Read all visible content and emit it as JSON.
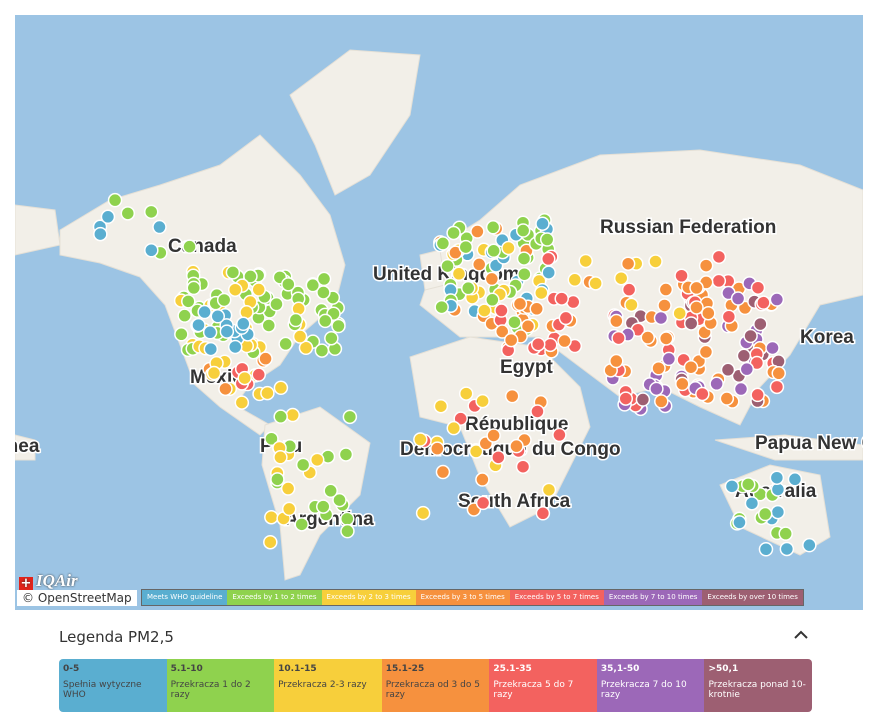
{
  "map": {
    "labels": [
      "Canada",
      "United Kingdom",
      "Russian Federation",
      "Egypt",
      "Korea",
      "République",
      "Démocratique du Congo",
      "South Africa",
      "Australia",
      "Argentina",
      "Mexico",
      "Peru",
      "Papua New Guinea",
      "Guinea"
    ],
    "brand": "IQAir",
    "attribution": "© OpenStreetMap",
    "mini_legend": [
      "Meets WHO guideline",
      "Exceeds by 1 to 2 times",
      "Exceeds by 2 to 3 times",
      "Exceeds by 3 to 5 times",
      "Exceeds by 5 to 7 times",
      "Exceeds by 7 to 10 times",
      "Exceeds by over 10 times"
    ]
  },
  "legend": {
    "title": "Legenda PM2,5",
    "items": [
      {
        "range": "0-5",
        "description": "Spełnia wytyczne WHO",
        "color": "#5aaed0"
      },
      {
        "range": "5.1-10",
        "description": "Przekracza 1 do 2 razy",
        "color": "#8fd24e"
      },
      {
        "range": "10.1-15",
        "description": "Przekracza 2-3 razy",
        "color": "#f7cf3b"
      },
      {
        "range": "15.1-25",
        "description": "Przekracza od 3 do 5 razy",
        "color": "#f6913e"
      },
      {
        "range": "25.1-35",
        "description": "Przekracza 5 do 7 razy",
        "color": "#f3625f"
      },
      {
        "range": "35,1-50",
        "description": "Przekracza 7 do 10 razy",
        "color": "#9c68b8"
      },
      {
        "range": ">50,1",
        "description": "Przekracza ponad 10-krotnie",
        "color": "#9d5f72"
      }
    ]
  }
}
